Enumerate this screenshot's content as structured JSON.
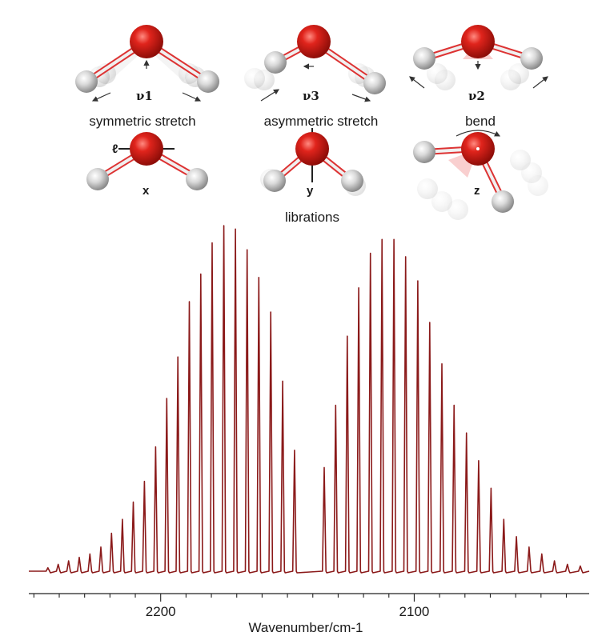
{
  "vibration_diagram": {
    "modes": [
      {
        "id": "nu1",
        "symbol": "ν1",
        "label": "symmetric stretch"
      },
      {
        "id": "nu3",
        "symbol": "ν3",
        "label": "asymmetric stretch"
      },
      {
        "id": "nu2",
        "symbol": "ν2",
        "label": "bend"
      }
    ],
    "librations": {
      "label": "librations",
      "axes": [
        "x",
        "y",
        "z"
      ]
    },
    "colors": {
      "oxygen": "#cc1a14",
      "hydrogen": "#cfcfcf",
      "bond": "#e8e8e8"
    }
  },
  "chart_data": {
    "type": "line",
    "title": "",
    "xlabel": "Wavenumber/cm-1",
    "ylabel": "",
    "x_direction": "decreasing-left-to-right",
    "xlim": [
      2252,
      2031
    ],
    "ylim": [
      0,
      1
    ],
    "xticks": [
      2200,
      2100
    ],
    "grid": false,
    "line_color": "#8b1a1a",
    "peaks": {
      "x": [
        2244.5,
        2240.4,
        2236.3,
        2232.1,
        2227.9,
        2223.6,
        2219.4,
        2215.1,
        2210.8,
        2206.4,
        2202.0,
        2197.6,
        2193.2,
        2188.7,
        2184.2,
        2179.7,
        2175.1,
        2170.5,
        2165.9,
        2161.3,
        2156.6,
        2151.9,
        2147.2,
        2135.5,
        2131.0,
        2126.4,
        2121.9,
        2117.3,
        2112.7,
        2108.0,
        2103.4,
        2098.6,
        2093.9,
        2089.1,
        2084.3,
        2079.4,
        2074.6,
        2069.7,
        2064.7,
        2059.7,
        2054.7,
        2049.7,
        2044.7,
        2039.6,
        2034.5
      ],
      "y": [
        0.01,
        0.02,
        0.03,
        0.04,
        0.05,
        0.07,
        0.11,
        0.15,
        0.2,
        0.26,
        0.36,
        0.5,
        0.62,
        0.78,
        0.86,
        0.95,
        1.0,
        0.99,
        0.93,
        0.85,
        0.75,
        0.55,
        0.35,
        0.3,
        0.48,
        0.68,
        0.82,
        0.92,
        0.96,
        0.96,
        0.91,
        0.84,
        0.72,
        0.6,
        0.48,
        0.4,
        0.32,
        0.24,
        0.15,
        0.1,
        0.07,
        0.05,
        0.03,
        0.02,
        0.015
      ]
    }
  }
}
